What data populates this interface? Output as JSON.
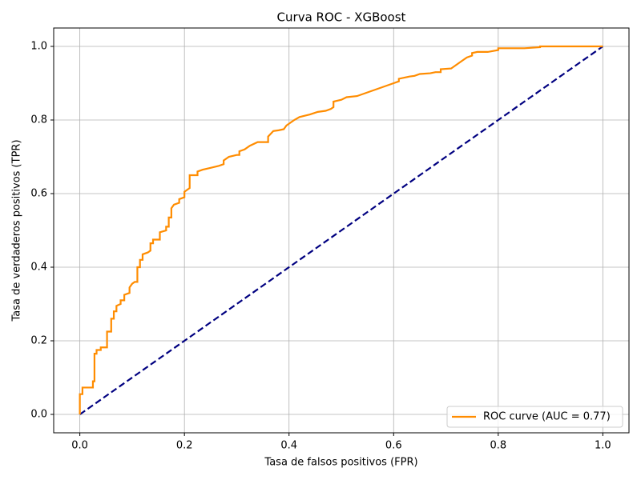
{
  "chart_data": {
    "type": "line",
    "title": "Curva ROC - XGBoost",
    "x_label": "Tasa de falsos positivos (FPR)",
    "y_label": "Tasa de verdaderos positivos (TPR)",
    "xlim": [
      -0.05,
      1.05
    ],
    "ylim": [
      -0.05,
      1.05
    ],
    "xticks": [
      {
        "value": 0,
        "label": "0.0"
      },
      0.2,
      0.4,
      0.6,
      0.8,
      {
        "value": 1,
        "label": "1.0"
      }
    ],
    "yticks": [
      {
        "value": 0,
        "label": "0.0"
      },
      0.2,
      0.4,
      0.6,
      0.8,
      {
        "value": 1,
        "label": "1.0"
      }
    ],
    "grid": true,
    "legend": "lower right",
    "series": [
      {
        "name": "ROC curve (AUC = 0.77)",
        "color": "darkorange",
        "style": "solid",
        "x": [
          0,
          0,
          0.005,
          0.005,
          0.025,
          0.025,
          0.028,
          0.028,
          0.032,
          0.032,
          0.04,
          0.04,
          0.052,
          0.052,
          0.06,
          0.06,
          0.065,
          0.065,
          0.07,
          0.07,
          0.078,
          0.078,
          0.085,
          0.085,
          0.095,
          0.095,
          0.1,
          0.105,
          0.11,
          0.11,
          0.115,
          0.115,
          0.12,
          0.12,
          0.13,
          0.135,
          0.135,
          0.14,
          0.14,
          0.153,
          0.153,
          0.165,
          0.165,
          0.17,
          0.17,
          0.175,
          0.175,
          0.18,
          0.19,
          0.19,
          0.2,
          0.2,
          0.205,
          0.21,
          0.21,
          0.225,
          0.225,
          0.235,
          0.25,
          0.265,
          0.275,
          0.275,
          0.285,
          0.3,
          0.305,
          0.305,
          0.315,
          0.325,
          0.34,
          0.36,
          0.36,
          0.37,
          0.38,
          0.39,
          0.395,
          0.41,
          0.42,
          0.44,
          0.455,
          0.47,
          0.48,
          0.485,
          0.485,
          0.5,
          0.51,
          0.53,
          0.6,
          0.61,
          0.61,
          0.63,
          0.64,
          0.65,
          0.67,
          0.68,
          0.69,
          0.69,
          0.71,
          0.72,
          0.73,
          0.74,
          0.75,
          0.75,
          0.76,
          0.78,
          0.8,
          0.8,
          0.85,
          0.88,
          0.88,
          1
        ],
        "y": [
          0,
          0.055,
          0.055,
          0.073,
          0.073,
          0.09,
          0.09,
          0.165,
          0.165,
          0.175,
          0.175,
          0.182,
          0.182,
          0.225,
          0.225,
          0.26,
          0.26,
          0.28,
          0.28,
          0.295,
          0.3,
          0.31,
          0.31,
          0.325,
          0.33,
          0.345,
          0.355,
          0.36,
          0.36,
          0.4,
          0.4,
          0.42,
          0.42,
          0.435,
          0.44,
          0.445,
          0.465,
          0.465,
          0.475,
          0.475,
          0.495,
          0.5,
          0.51,
          0.51,
          0.535,
          0.535,
          0.56,
          0.57,
          0.575,
          0.585,
          0.59,
          0.605,
          0.61,
          0.615,
          0.65,
          0.65,
          0.66,
          0.665,
          0.67,
          0.675,
          0.68,
          0.69,
          0.7,
          0.705,
          0.705,
          0.715,
          0.72,
          0.73,
          0.74,
          0.74,
          0.755,
          0.77,
          0.772,
          0.775,
          0.785,
          0.8,
          0.808,
          0.815,
          0.822,
          0.825,
          0.83,
          0.835,
          0.85,
          0.855,
          0.862,
          0.865,
          0.9,
          0.905,
          0.912,
          0.918,
          0.92,
          0.925,
          0.927,
          0.93,
          0.93,
          0.938,
          0.94,
          0.95,
          0.96,
          0.97,
          0.975,
          0.982,
          0.985,
          0.985,
          0.99,
          0.995,
          0.995,
          0.998,
          1,
          1
        ]
      },
      {
        "color": "navy",
        "style": "dashed",
        "x": [
          0,
          1
        ],
        "y": [
          0,
          1
        ]
      }
    ]
  }
}
